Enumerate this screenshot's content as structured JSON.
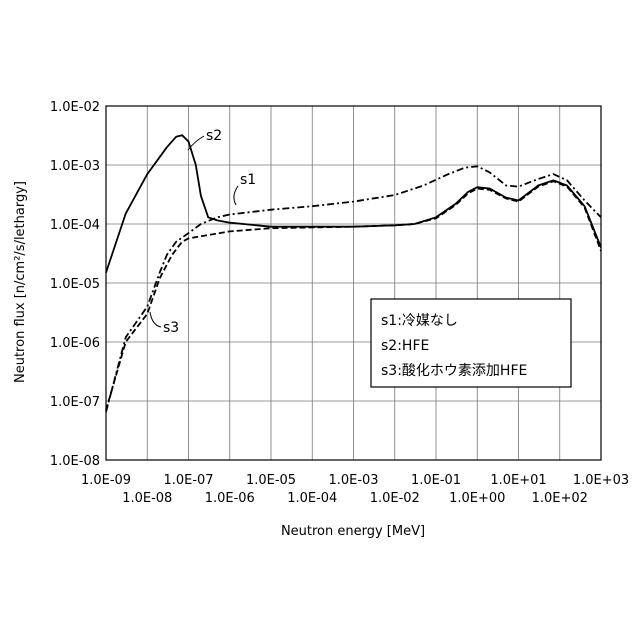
{
  "chart_data": {
    "type": "line",
    "xlabel": "Neutron energy [MeV]",
    "ylabel": "Neutron flux [n/cm²/s/lethargy]",
    "xscale": "log",
    "yscale": "log",
    "xlim": [
      1e-09,
      1000
    ],
    "ylim": [
      1e-08,
      0.01
    ],
    "grid": true,
    "x_ticks_upper": [
      "1.0E-09",
      "1.0E-07",
      "1.0E-05",
      "1.0E-03",
      "1.0E-01",
      "1.0E+01",
      "1.0E+03"
    ],
    "x_ticks_lower": [
      "1.0E-08",
      "1.0E-06",
      "1.0E-04",
      "1.0E-02",
      "1.0E+00",
      "1.0E+02"
    ],
    "y_ticks": [
      "1.0E-02",
      "1.0E-03",
      "1.0E-04",
      "1.0E-05",
      "1.0E-06",
      "1.0E-07",
      "1.0E-08"
    ],
    "legend": {
      "placement": "lower-right",
      "entries": [
        "s1:冷媒なし",
        "s2:HFE",
        "s3:酸化ホウ素添加HFE"
      ]
    },
    "series": [
      {
        "name": "s1",
        "style": "dash-dot",
        "points": [
          [
            1e-09,
            6.5e-08
          ],
          [
            3e-09,
            1.2e-06
          ],
          [
            1e-08,
            4e-06
          ],
          [
            2e-08,
            1.5e-05
          ],
          [
            3e-08,
            3e-05
          ],
          [
            5e-08,
            5e-05
          ],
          [
            1e-07,
            7e-05
          ],
          [
            2e-07,
            0.0001
          ],
          [
            5e-07,
            0.00013
          ],
          [
            1e-06,
            0.000145
          ],
          [
            1e-05,
            0.000175
          ],
          [
            0.0001,
            0.0002
          ],
          [
            0.001,
            0.00024
          ],
          [
            0.01,
            0.00031
          ],
          [
            0.05,
            0.00045
          ],
          [
            0.2,
            0.0007
          ],
          [
            0.5,
            0.0009
          ],
          [
            1,
            0.00095
          ],
          [
            2,
            0.00075
          ],
          [
            5,
            0.00045
          ],
          [
            10,
            0.00043
          ],
          [
            30,
            0.00058
          ],
          [
            70,
            0.0007
          ],
          [
            150,
            0.00055
          ],
          [
            400,
            0.00025
          ],
          [
            1000,
            0.00013
          ]
        ]
      },
      {
        "name": "s2",
        "style": "solid",
        "points": [
          [
            1e-09,
            1.5e-05
          ],
          [
            3e-09,
            0.00015
          ],
          [
            1e-08,
            0.0007
          ],
          [
            3e-08,
            0.002
          ],
          [
            5e-08,
            0.003
          ],
          [
            7e-08,
            0.0032
          ],
          [
            1e-07,
            0.0025
          ],
          [
            1.5e-07,
            0.001
          ],
          [
            2e-07,
            0.0003
          ],
          [
            3e-07,
            0.00013
          ],
          [
            5e-07,
            0.000115
          ],
          [
            1e-06,
            0.000105
          ],
          [
            1e-05,
            9e-05
          ],
          [
            0.001,
            9e-05
          ],
          [
            0.01,
            9.5e-05
          ],
          [
            0.03,
            0.0001
          ],
          [
            0.1,
            0.00013
          ],
          [
            0.3,
            0.00022
          ],
          [
            0.6,
            0.00035
          ],
          [
            1,
            0.00042
          ],
          [
            2,
            0.0004
          ],
          [
            5,
            0.00028
          ],
          [
            10,
            0.00025
          ],
          [
            30,
            0.00045
          ],
          [
            70,
            0.00055
          ],
          [
            150,
            0.00045
          ],
          [
            400,
            0.0002
          ],
          [
            1000,
            4e-05
          ]
        ]
      },
      {
        "name": "s3",
        "style": "dashed",
        "points": [
          [
            1e-09,
            7e-08
          ],
          [
            3e-09,
            1e-06
          ],
          [
            1e-08,
            3e-06
          ],
          [
            2e-08,
            1.2e-05
          ],
          [
            4e-08,
            3e-05
          ],
          [
            7e-08,
            5e-05
          ],
          [
            1e-07,
            5.7e-05
          ],
          [
            3e-07,
            6.5e-05
          ],
          [
            1e-06,
            7.5e-05
          ],
          [
            1e-05,
            8.5e-05
          ],
          [
            0.001,
            9e-05
          ],
          [
            0.01,
            9.5e-05
          ],
          [
            0.03,
            0.0001
          ],
          [
            0.1,
            0.000125
          ],
          [
            0.3,
            0.00021
          ],
          [
            0.6,
            0.00033
          ],
          [
            1,
            0.0004
          ],
          [
            2,
            0.00038
          ],
          [
            5,
            0.00027
          ],
          [
            10,
            0.00024
          ],
          [
            30,
            0.00043
          ],
          [
            70,
            0.00053
          ],
          [
            150,
            0.00043
          ],
          [
            400,
            0.00019
          ],
          [
            1000,
            3.5e-05
          ]
        ]
      }
    ]
  }
}
